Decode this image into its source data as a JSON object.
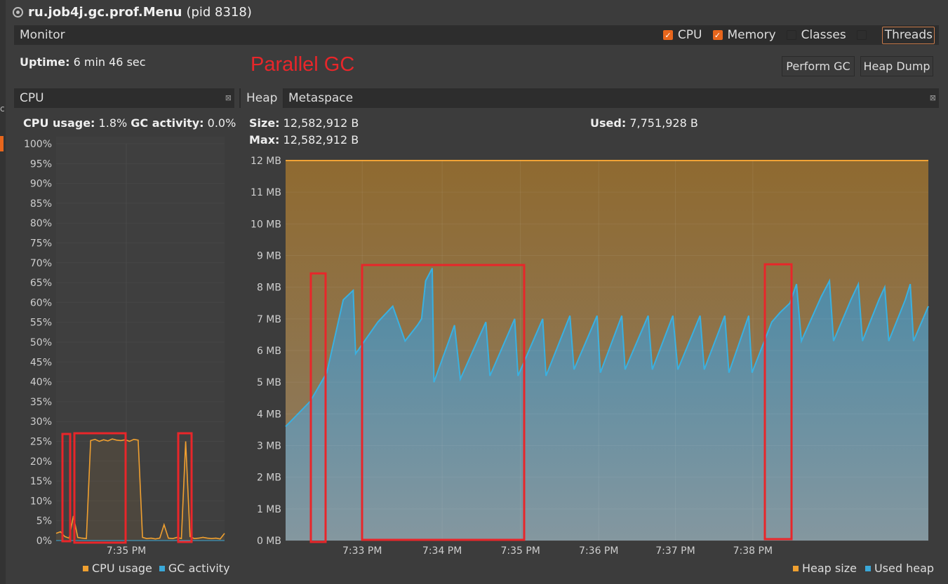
{
  "window": {
    "title": "ru.job4j.gc.prof.Menu",
    "pid": "(pid 8318)"
  },
  "monitor": {
    "label": "Monitor",
    "checks": [
      {
        "label": "CPU",
        "checked": true
      },
      {
        "label": "Memory",
        "checked": true
      },
      {
        "label": "Classes",
        "checked": false
      },
      {
        "label": "Threads",
        "checked": false
      }
    ]
  },
  "uptime": {
    "label": "Uptime:",
    "value": "6 min 46 sec"
  },
  "annotation": "Parallel GC",
  "buttons": {
    "perform_gc": "Perform GC",
    "heap_dump": "Heap Dump"
  },
  "cpu_panel": {
    "title": "CPU",
    "usage_label": "CPU usage:",
    "usage_value": "1.8%",
    "gc_label": "GC activity:",
    "gc_value": "0.0%",
    "legend": [
      "CPU usage",
      "GC activity"
    ]
  },
  "heap_panel": {
    "tabs": [
      "Heap",
      "Metaspace"
    ],
    "size_label": "Size:",
    "size_value": "12,582,912 B",
    "max_label": "Max:",
    "max_value": "12,582,912 B",
    "used_label": "Used:",
    "used_value": "7,751,928 B",
    "legend": [
      "Heap size",
      "Used heap"
    ]
  },
  "colors": {
    "accent": "#e8661c",
    "cpu": "#f0a030",
    "gc": "#3aa8d8",
    "annotation": "#e8262a",
    "heap": "#8f6a33",
    "used": "#5d8fa3"
  },
  "chart_data": [
    {
      "type": "line",
      "title": "CPU",
      "ylim": [
        0,
        100
      ],
      "yticks": [
        "100%",
        "95%",
        "90%",
        "85%",
        "80%",
        "75%",
        "70%",
        "65%",
        "60%",
        "55%",
        "50%",
        "45%",
        "40%",
        "35%",
        "30%",
        "25%",
        "20%",
        "15%",
        "10%",
        "5%",
        "0%"
      ],
      "xticks": [
        "7:35 PM"
      ],
      "series": [
        {
          "name": "CPU usage",
          "values": [
            1.8,
            2.2,
            1.0,
            0.6,
            6.2,
            0.8,
            0.6,
            0.5,
            25.2,
            25.5,
            25.0,
            25.4,
            25.1,
            25.6,
            25.3,
            25.2,
            25.4,
            25.0,
            25.5,
            25.3,
            0.8,
            0.5,
            0.6,
            0.4,
            0.6,
            4.0,
            0.6,
            0.5,
            0.8,
            0.5,
            25.0,
            1.0,
            0.5,
            0.6,
            0.8,
            0.6,
            0.5,
            0.6,
            0.4,
            1.8
          ]
        },
        {
          "name": "GC activity",
          "values": [
            0,
            0,
            0,
            0,
            0,
            0,
            0,
            0,
            0,
            0,
            0,
            0,
            0,
            0,
            0,
            0,
            0,
            0,
            0,
            0,
            0,
            0,
            0,
            0,
            0,
            0,
            0,
            0,
            0,
            0,
            0,
            0,
            0,
            0,
            0,
            0,
            0,
            0,
            0,
            0
          ]
        }
      ]
    },
    {
      "type": "area",
      "title": "Heap",
      "ylim": [
        0,
        12
      ],
      "yticks": [
        "12 MB",
        "11 MB",
        "10 MB",
        "9 MB",
        "8 MB",
        "7 MB",
        "6 MB",
        "5 MB",
        "4 MB",
        "3 MB",
        "2 MB",
        "1 MB",
        "0 MB"
      ],
      "xticks": [
        "7:33 PM",
        "7:34 PM",
        "7:35 PM",
        "7:36 PM",
        "7:37 PM",
        "7:38 PM"
      ],
      "series": [
        {
          "name": "Heap size",
          "values": [
            12,
            12
          ]
        },
        {
          "name": "Used heap",
          "points": [
            [
              0,
              3.6
            ],
            [
              0.3,
              4.4
            ],
            [
              0.5,
              5.3
            ],
            [
              0.7,
              7.6
            ],
            [
              0.82,
              7.9
            ],
            [
              0.85,
              5.9
            ],
            [
              1.12,
              6.9
            ],
            [
              1.3,
              7.4
            ],
            [
              1.45,
              6.3
            ],
            [
              1.6,
              6.8
            ],
            [
              1.65,
              7.0
            ],
            [
              1.7,
              8.2
            ],
            [
              1.78,
              8.6
            ],
            [
              1.8,
              5.0
            ],
            [
              2.05,
              6.8
            ],
            [
              2.12,
              5.1
            ],
            [
              2.43,
              6.9
            ],
            [
              2.48,
              5.2
            ],
            [
              2.78,
              7.0
            ],
            [
              2.82,
              5.2
            ],
            [
              3.12,
              7.0
            ],
            [
              3.16,
              5.2
            ],
            [
              3.45,
              7.1
            ],
            [
              3.5,
              5.4
            ],
            [
              3.78,
              7.1
            ],
            [
              3.82,
              5.3
            ],
            [
              4.08,
              7.1
            ],
            [
              4.12,
              5.4
            ],
            [
              4.4,
              7.1
            ],
            [
              4.45,
              5.4
            ],
            [
              4.7,
              7.1
            ],
            [
              4.76,
              5.4
            ],
            [
              5.03,
              7.1
            ],
            [
              5.08,
              5.4
            ],
            [
              5.33,
              7.1
            ],
            [
              5.38,
              5.3
            ],
            [
              5.62,
              7.1
            ],
            [
              5.66,
              5.3
            ],
            [
              5.9,
              6.9
            ],
            [
              6.0,
              7.2
            ],
            [
              6.12,
              7.5
            ],
            [
              6.2,
              8.1
            ],
            [
              6.26,
              6.3
            ],
            [
              6.5,
              7.7
            ],
            [
              6.6,
              8.2
            ],
            [
              6.65,
              6.3
            ],
            [
              6.86,
              7.6
            ],
            [
              6.95,
              8.1
            ],
            [
              7.0,
              6.3
            ],
            [
              7.2,
              7.6
            ],
            [
              7.27,
              8.0
            ],
            [
              7.32,
              6.3
            ],
            [
              7.52,
              7.6
            ],
            [
              7.58,
              8.1
            ],
            [
              7.62,
              6.3
            ],
            [
              7.8,
              7.4
            ]
          ]
        }
      ],
      "x_range": [
        0,
        7.8
      ],
      "x_tick_positions": [
        0.93,
        1.9,
        2.85,
        3.8,
        4.73,
        5.67
      ]
    }
  ],
  "highlights": {
    "cpu": [
      [
        89,
        619,
        11,
        153
      ],
      [
        106,
        618,
        73,
        156
      ],
      [
        254,
        618,
        19,
        155
      ]
    ],
    "heap": [
      [
        443,
        390,
        21,
        383
      ],
      [
        516,
        378,
        231,
        392
      ],
      [
        1090,
        377,
        38,
        392
      ]
    ]
  }
}
